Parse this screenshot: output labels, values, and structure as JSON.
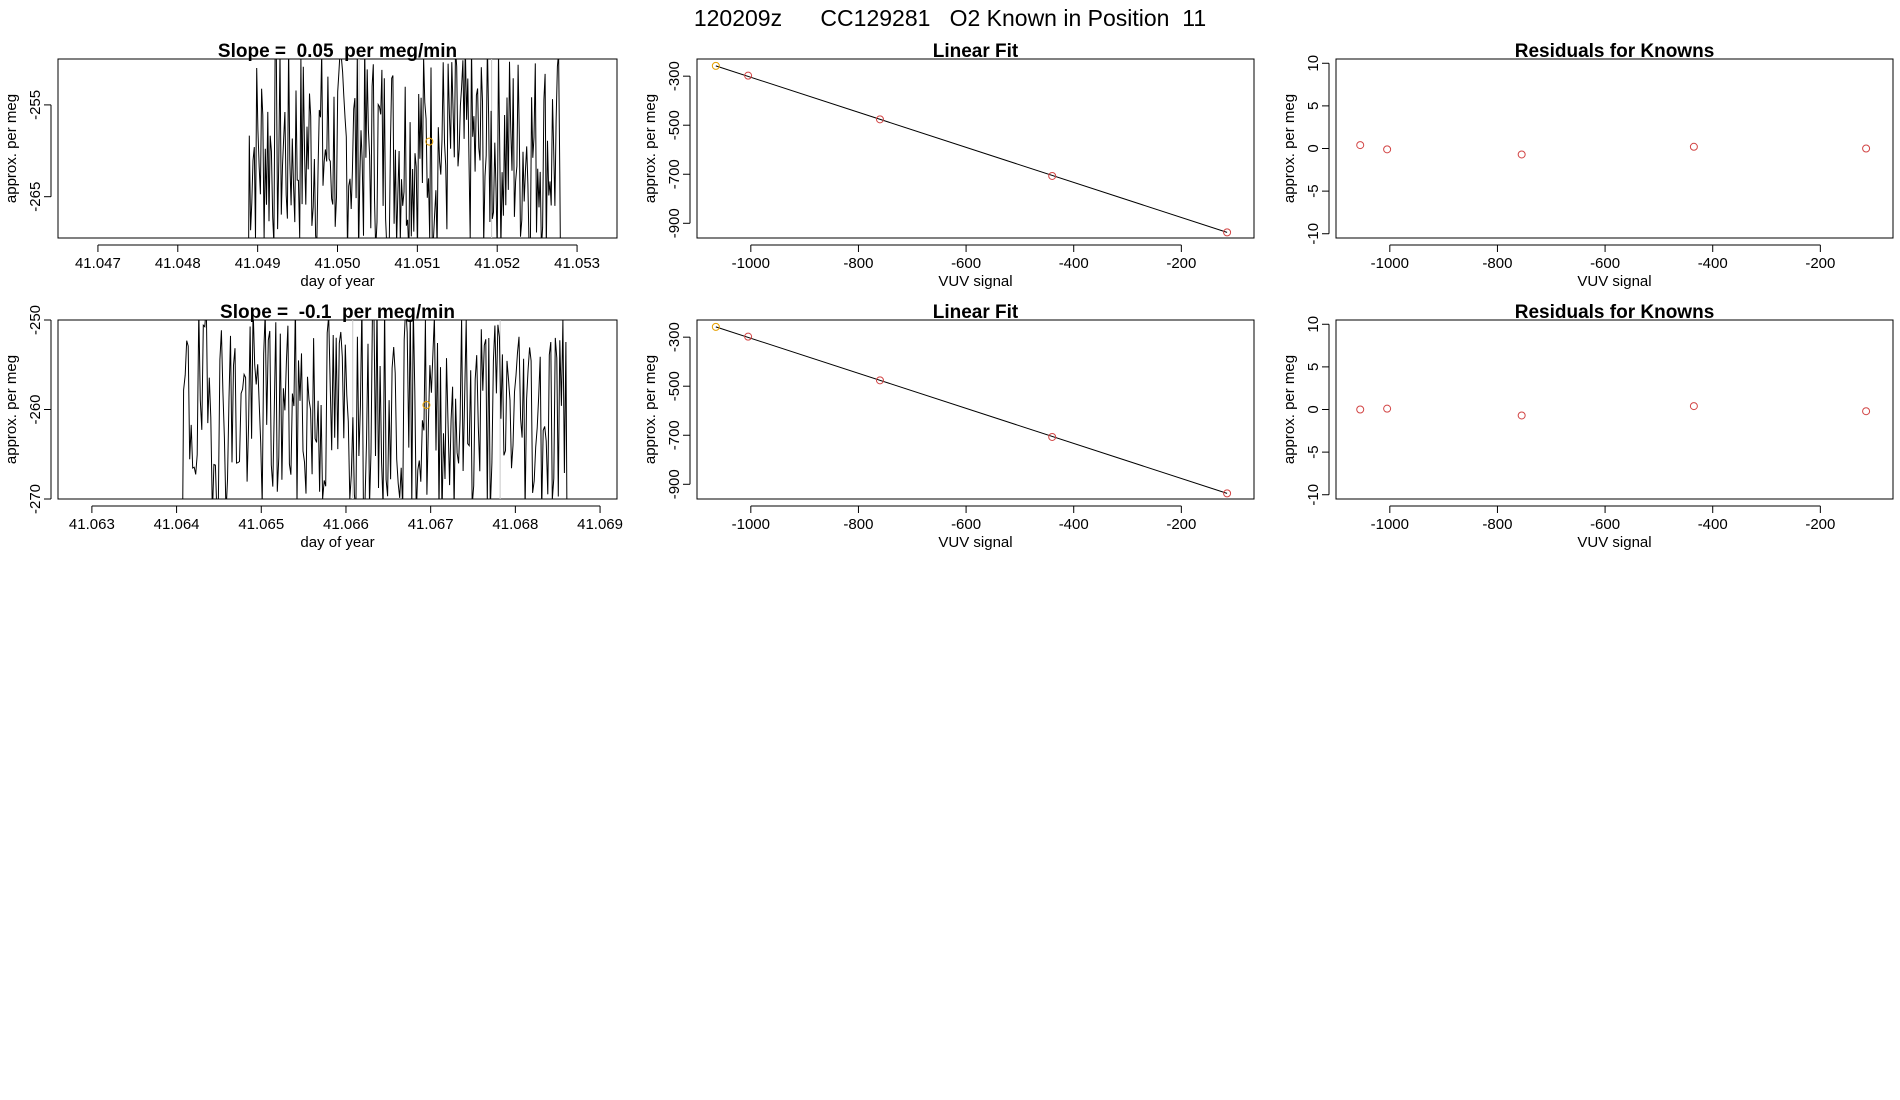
{
  "page_title": "120209z      CC129281   O2 Known in Position  11",
  "colors": {
    "line": "#000000",
    "orange_point": "#E69F00",
    "red_point": "#D24545",
    "grid_line": "#C8C8C8"
  },
  "chart_data": [
    {
      "id": "row1-timeseries",
      "type": "line",
      "title": "Slope =  0.05  per meg/min",
      "xlabel": "day of year",
      "ylabel": "approx. per meg",
      "xlim": [
        41.0465,
        41.0535
      ],
      "ylim": [
        -269.5,
        -250
      ],
      "xticks": [
        "41.047",
        "41.048",
        "41.049",
        "41.050",
        "41.051",
        "41.052",
        "41.053"
      ],
      "yticks": [
        "-255",
        "-265"
      ],
      "vlines_x": [
        41.05027,
        41.05193
      ],
      "series": [
        {
          "x": [
            41.04885,
            41.05283
          ],
          "noisy_trace": true,
          "seed": 7
        }
      ],
      "highlight_points": [
        {
          "x": 41.05115,
          "y": -259,
          "color": "orange"
        }
      ]
    },
    {
      "id": "row1-linearfit",
      "type": "scatter",
      "title": "Linear Fit",
      "xlabel": "VUV signal",
      "ylabel": "approx. per meg",
      "xlim": [
        -1100,
        -65
      ],
      "ylim": [
        -960,
        -230
      ],
      "xticks": [
        "-1000",
        "-800",
        "-600",
        "-400",
        "-200"
      ],
      "yticks": [
        "-300",
        "-500",
        "-700",
        "-900"
      ],
      "points": [
        {
          "x": -1065,
          "y": -258,
          "color": "orange"
        },
        {
          "x": -1005,
          "y": -298,
          "color": "red"
        },
        {
          "x": -760,
          "y": -476,
          "color": "red"
        },
        {
          "x": -440,
          "y": -707,
          "color": "red"
        },
        {
          "x": -115,
          "y": -937,
          "color": "red"
        }
      ],
      "fit_line": [
        [
          -1065,
          -258
        ],
        [
          -115,
          -937
        ]
      ]
    },
    {
      "id": "row1-residuals",
      "type": "scatter",
      "title": "Residuals for Knowns",
      "xlabel": "VUV signal",
      "ylabel": "approx. per meg",
      "xlim": [
        -1100,
        -65
      ],
      "ylim": [
        -10.5,
        10.5
      ],
      "xticks": [
        "-1000",
        "-800",
        "-600",
        "-400",
        "-200"
      ],
      "yticks": [
        "-10",
        "-5",
        "0",
        "5",
        "10"
      ],
      "points": [
        {
          "x": -1055,
          "y": 0.4,
          "color": "red"
        },
        {
          "x": -1005,
          "y": -0.1,
          "color": "red"
        },
        {
          "x": -755,
          "y": -0.7,
          "color": "red"
        },
        {
          "x": -435,
          "y": 0.2,
          "color": "red"
        },
        {
          "x": -115,
          "y": 0.0,
          "color": "red"
        }
      ]
    },
    {
      "id": "row2-timeseries",
      "type": "line",
      "title": "Slope =  -0.1  per meg/min",
      "xlabel": "day of year",
      "ylabel": "approx. per meg",
      "xlim": [
        41.0626,
        41.0692
      ],
      "ylim": [
        -270,
        -250
      ],
      "xticks": [
        "41.063",
        "41.064",
        "41.065",
        "41.066",
        "41.067",
        "41.068",
        "41.069"
      ],
      "yticks": [
        "-250",
        "-260",
        "-270"
      ],
      "vlines_x": [
        41.06608,
        41.06782
      ],
      "series": [
        {
          "x": [
            41.06403,
            41.06865
          ],
          "noisy_trace": true,
          "seed": 19
        }
      ],
      "highlight_points": [
        {
          "x": 41.06695,
          "y": -259.5,
          "color": "orange"
        }
      ]
    },
    {
      "id": "row2-linearfit",
      "type": "scatter",
      "title": "Linear Fit",
      "xlabel": "VUV signal",
      "ylabel": "approx. per meg",
      "xlim": [
        -1100,
        -65
      ],
      "ylim": [
        -960,
        -230
      ],
      "xticks": [
        "-1000",
        "-800",
        "-600",
        "-400",
        "-200"
      ],
      "yticks": [
        "-300",
        "-500",
        "-700",
        "-900"
      ],
      "points": [
        {
          "x": -1065,
          "y": -258,
          "color": "orange"
        },
        {
          "x": -1005,
          "y": -298,
          "color": "red"
        },
        {
          "x": -760,
          "y": -476,
          "color": "red"
        },
        {
          "x": -440,
          "y": -707,
          "color": "red"
        },
        {
          "x": -115,
          "y": -937,
          "color": "red"
        }
      ],
      "fit_line": [
        [
          -1065,
          -258
        ],
        [
          -115,
          -937
        ]
      ]
    },
    {
      "id": "row2-residuals",
      "type": "scatter",
      "title": "Residuals for Knowns",
      "xlabel": "VUV signal",
      "ylabel": "approx. per meg",
      "xlim": [
        -1100,
        -65
      ],
      "ylim": [
        -10.5,
        10.5
      ],
      "xticks": [
        "-1000",
        "-800",
        "-600",
        "-400",
        "-200"
      ],
      "yticks": [
        "-10",
        "-5",
        "0",
        "5",
        "10"
      ],
      "points": [
        {
          "x": -1055,
          "y": 0.0,
          "color": "red"
        },
        {
          "x": -1005,
          "y": 0.1,
          "color": "red"
        },
        {
          "x": -755,
          "y": -0.7,
          "color": "red"
        },
        {
          "x": -435,
          "y": 0.4,
          "color": "red"
        },
        {
          "x": -115,
          "y": -0.2,
          "color": "red"
        }
      ]
    }
  ]
}
